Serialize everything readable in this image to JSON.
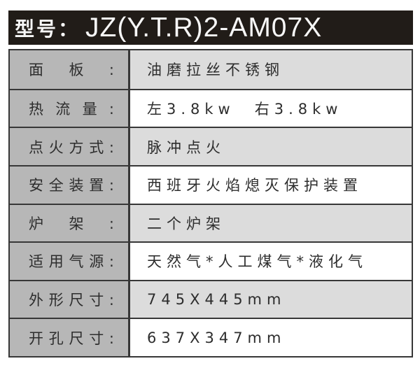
{
  "header": {
    "label": "型号：",
    "model": "JZ(Y.T.R)2-AM07X"
  },
  "table": {
    "rows": [
      {
        "label": "面板:",
        "value": "油磨拉丝不锈钢"
      },
      {
        "label": "热流量:",
        "value": "左3.8kw　右3.8kw"
      },
      {
        "label": "点火方式:",
        "value": "脉冲点火"
      },
      {
        "label": "安全装置:",
        "value": "西班牙火焰熄灭保护装置"
      },
      {
        "label": "炉架:",
        "value": "二个炉架"
      },
      {
        "label": "适用气源:",
        "value": "天然气*人工煤气*液化气"
      },
      {
        "label": "外形尺寸:",
        "value": "745X445mm"
      },
      {
        "label": "开孔尺寸:",
        "value": "637X347mm"
      }
    ]
  },
  "colors": {
    "header_bg": "#211c18",
    "header_text": "#f7f7f7",
    "label_cell_bg": "#b7b7b7",
    "value_cell_bg": "#ffffff",
    "value_cell_bg_alt": "#dcdcdc",
    "border": "#373737",
    "text": "#2d2d2d"
  }
}
